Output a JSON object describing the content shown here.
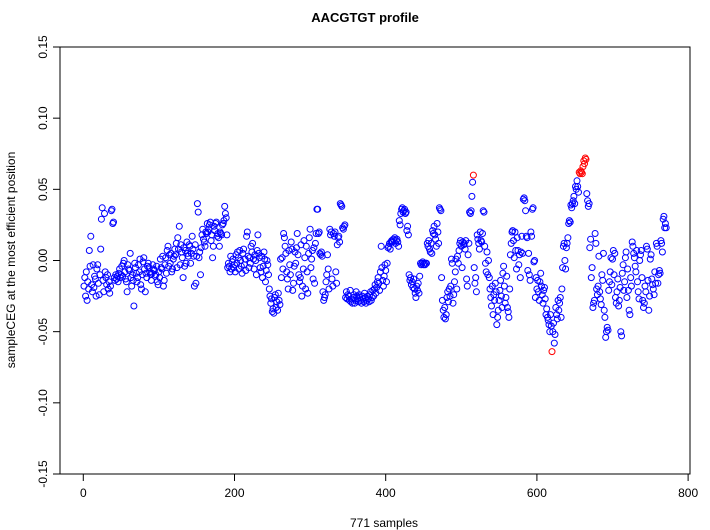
{
  "chart_data": {
    "type": "scatter",
    "title": "AACGTGT profile",
    "xlabel": "771 samples",
    "ylabel": "sampleCEG at the most efficient position",
    "xlim": [
      0,
      800
    ],
    "ylim": [
      -0.15,
      0.15
    ],
    "x_ticks": [
      "0",
      "200",
      "400",
      "600",
      "800"
    ],
    "y_ticks": [
      "-0.15",
      "-0.10",
      "-0.05",
      "0.00",
      "0.05",
      "0.10",
      "0.15"
    ],
    "grid": false,
    "legend": "none",
    "point_color": "#0000ff",
    "highlight_color": "#ff0000",
    "highlighted_samples": [
      516,
      620,
      656,
      657,
      658,
      659,
      660,
      661,
      662,
      663,
      664,
      665
    ],
    "x": "sample index 1..771",
    "values": [
      -0.018,
      -0.012,
      -0.025,
      -0.008,
      -0.028,
      -0.015,
      -0.02,
      0.007,
      -0.004,
      0.017,
      -0.017,
      -0.022,
      -0.003,
      -0.019,
      -0.011,
      -0.013,
      -0.025,
      -0.006,
      -0.003,
      -0.016,
      -0.024,
      -0.01,
      0.008,
      0.029,
      0.037,
      -0.014,
      -0.022,
      0.033,
      -0.008,
      -0.012,
      -0.017,
      -0.01,
      -0.02,
      -0.015,
      -0.023,
      -0.018,
      0.035,
      0.036,
      0.026,
      0.027,
      -0.012,
      -0.014,
      -0.01,
      -0.013,
      -0.011,
      -0.015,
      -0.009,
      -0.006,
      -0.012,
      -0.01,
      -0.004,
      -0.011,
      -0.002,
      0.0,
      -0.008,
      -0.013,
      -0.015,
      -0.022,
      -0.003,
      -0.006,
      -0.007,
      0.005,
      -0.012,
      -0.018,
      -0.01,
      -0.014,
      -0.032,
      -0.002,
      -0.005,
      -0.009,
      -0.015,
      -0.012,
      -0.003,
      -0.008,
      0.001,
      -0.017,
      -0.02,
      -0.01,
      -0.001,
      0.002,
      -0.006,
      -0.022,
      -0.009,
      -0.012,
      -0.004,
      -0.002,
      -0.005,
      -0.008,
      -0.01,
      -0.014,
      -0.009,
      -0.003,
      -0.006,
      -0.007,
      -0.011,
      -0.01,
      -0.004,
      -0.015,
      -0.017,
      -0.008,
      -0.012,
      0.001,
      -0.005,
      -0.006,
      0.003,
      -0.018,
      -0.014,
      -0.003,
      0.002,
      -0.009,
      0.007,
      0.01,
      -0.004,
      0.004,
      -0.002,
      0.005,
      -0.008,
      -0.006,
      0.001,
      0.003,
      0.008,
      0.004,
      0.012,
      -0.005,
      0.016,
      0.008,
      0.024,
      -0.003,
      0.011,
      0.006,
      0.002,
      -0.012,
      0.009,
      -0.004,
      0.007,
      -0.002,
      0.013,
      0.005,
      0.003,
      0.011,
      0.01,
      -0.002,
      0.005,
      0.017,
      0.008,
      0.003,
      -0.018,
      0.011,
      -0.016,
      0.003,
      0.04,
      0.034,
      0.002,
      0.006,
      -0.01,
      0.009,
      0.018,
      0.022,
      0.015,
      0.013,
      0.01,
      0.02,
      0.019,
      0.026,
      0.02,
      0.022,
      0.025,
      0.027,
      0.014,
      0.018,
      0.002,
      0.01,
      0.024,
      0.021,
      0.026,
      0.027,
      0.017,
      0.019,
      0.016,
      0.01,
      0.02,
      0.019,
      0.018,
      0.025,
      0.026,
      0.028,
      0.038,
      0.033,
      0.03,
      0.018,
      -0.005,
      -0.002,
      -0.004,
      -0.008,
      0.003,
      -0.006,
      -0.001,
      0.001,
      -0.005,
      -0.003,
      -0.008,
      0.004,
      -0.002,
      0.006,
      0.002,
      -0.006,
      0.007,
      0.0,
      -0.004,
      -0.009,
      0.005,
      0.008,
      -0.003,
      0.001,
      -0.007,
      0.017,
      0.02,
      0.003,
      -0.005,
      0.002,
      -0.002,
      0.01,
      0.006,
      0.012,
      0.001,
      -0.006,
      0.004,
      0.0,
      -0.01,
      0.007,
      0.018,
      0.005,
      0.002,
      -0.005,
      -0.008,
      0.003,
      -0.012,
      -0.004,
      0.006,
      0.001,
      -0.015,
      -0.007,
      0.0,
      -0.003,
      -0.01,
      -0.02,
      -0.025,
      -0.03,
      -0.027,
      -0.036,
      -0.034,
      -0.037,
      -0.026,
      -0.024,
      -0.033,
      -0.029,
      -0.035,
      -0.023,
      -0.028,
      -0.031,
      0.001,
      -0.012,
      0.002,
      -0.006,
      0.019,
      0.016,
      0.01,
      0.005,
      -0.008,
      -0.013,
      -0.02,
      0.007,
      -0.003,
      -0.01,
      0.013,
      0.008,
      -0.021,
      -0.016,
      -0.004,
      0.006,
      -0.002,
      0.009,
      0.019,
      0.004,
      -0.01,
      -0.015,
      -0.012,
      0.011,
      -0.025,
      -0.018,
      -0.006,
      0.014,
      0.002,
      -0.02,
      0.01,
      -0.008,
      -0.023,
      0.005,
      0.016,
      0.022,
      -0.005,
      0.001,
      0.007,
      -0.013,
      0.009,
      -0.016,
      0.012,
      0.019,
      0.036,
      0.036,
      0.019,
      0.02,
      0.005,
      0.004,
      0.006,
      0.003,
      -0.022,
      -0.028,
      -0.026,
      -0.024,
      -0.015,
      -0.01,
      0.004,
      -0.006,
      -0.02,
      0.022,
      0.018,
      0.02,
      -0.013,
      -0.018,
      0.019,
      0.017,
      0.02,
      -0.008,
      -0.016,
      0.011,
      0.016,
      0.017,
      0.013,
      0.04,
      0.039,
      0.038,
      0.023,
      0.022,
      0.024,
      0.025,
      -0.026,
      -0.022,
      -0.027,
      -0.024,
      -0.025,
      -0.028,
      -0.021,
      -0.029,
      -0.027,
      -0.03,
      -0.026,
      -0.024,
      -0.03,
      -0.028,
      -0.022,
      -0.025,
      -0.027,
      -0.029,
      -0.024,
      -0.026,
      -0.028,
      -0.03,
      -0.025,
      -0.027,
      -0.029,
      -0.023,
      -0.026,
      -0.03,
      -0.028,
      -0.025,
      -0.027,
      -0.029,
      -0.024,
      -0.022,
      -0.028,
      -0.026,
      -0.021,
      -0.025,
      -0.02,
      -0.017,
      -0.023,
      -0.019,
      -0.015,
      -0.012,
      -0.016,
      -0.021,
      -0.008,
      0.01,
      -0.005,
      -0.014,
      -0.018,
      -0.011,
      -0.003,
      -0.007,
      -0.015,
      -0.002,
      0.009,
      0.01,
      0.012,
      0.008,
      0.013,
      0.014,
      0.013,
      0.015,
      0.014,
      0.016,
      0.012,
      0.014,
      0.015,
      0.013,
      0.01,
      0.028,
      0.025,
      0.033,
      0.036,
      0.037,
      0.034,
      0.035,
      0.036,
      0.033,
      0.034,
      0.021,
      0.024,
      0.018,
      -0.01,
      -0.014,
      -0.012,
      -0.017,
      -0.015,
      -0.019,
      -0.013,
      -0.02,
      -0.023,
      -0.026,
      -0.018,
      -0.021,
      -0.016,
      -0.023,
      -0.011,
      -0.002,
      -0.003,
      -0.002,
      -0.001,
      -0.003,
      -0.002,
      -0.003,
      -0.002,
      -0.002,
      0.012,
      0.01,
      0.014,
      0.008,
      0.006,
      0.012,
      0.005,
      0.021,
      0.019,
      0.024,
      0.018,
      0.015,
      0.01,
      0.026,
      0.02,
      0.012,
      0.037,
      0.036,
      0.035,
      -0.012,
      -0.028,
      -0.035,
      -0.04,
      -0.033,
      -0.041,
      -0.038,
      -0.026,
      -0.022,
      -0.029,
      -0.02,
      -0.025,
      -0.018,
      0.001,
      -0.002,
      -0.03,
      -0.024,
      -0.015,
      -0.008,
      0.001,
      -0.02,
      0.003,
      -0.002,
      0.007,
      0.012,
      0.014,
      0.01,
      -0.005,
      0.013,
      0.011,
      0.012,
      0.008,
      0.014,
      -0.013,
      -0.018,
      0.004,
      0.012,
      0.034,
      0.033,
      0.035,
      0.045,
      0.055,
      0.06,
      -0.005,
      -0.016,
      -0.012,
      -0.022,
      0.018,
      0.015,
      0.012,
      0.008,
      0.02,
      0.014,
      0.013,
      0.019,
      0.035,
      0.034,
      0.01,
      -0.002,
      -0.008,
      0.006,
      -0.01,
      0.0,
      -0.012,
      -0.02,
      -0.026,
      -0.032,
      -0.018,
      -0.038,
      -0.024,
      -0.028,
      -0.016,
      -0.022,
      -0.045,
      -0.04,
      -0.035,
      -0.028,
      -0.021,
      -0.014,
      -0.025,
      -0.033,
      -0.009,
      -0.004,
      -0.018,
      -0.03,
      -0.026,
      -0.011,
      -0.033,
      -0.036,
      -0.04,
      -0.02,
      0.004,
      0.012,
      0.02,
      0.021,
      0.014,
      0.002,
      0.02,
      0.007,
      -0.006,
      0.016,
      0.007,
      -0.003,
      0.004,
      -0.012,
      0.006,
      0.017,
      0.005,
      0.043,
      0.044,
      0.042,
      0.035,
      0.017,
      0.016,
      -0.007,
      0.005,
      -0.01,
      -0.014,
      0.02,
      0.017,
      0.036,
      0.037,
      -0.001,
      0.0,
      -0.026,
      -0.012,
      -0.02,
      -0.014,
      -0.022,
      -0.028,
      -0.015,
      -0.009,
      -0.018,
      -0.024,
      -0.03,
      -0.021,
      -0.019,
      -0.027,
      -0.038,
      -0.034,
      -0.04,
      -0.042,
      -0.045,
      -0.05,
      -0.038,
      -0.046,
      -0.064,
      -0.05,
      -0.044,
      -0.058,
      -0.052,
      -0.033,
      -0.038,
      -0.041,
      -0.028,
      -0.035,
      -0.03,
      -0.026,
      -0.04,
      -0.02,
      -0.005,
      0.01,
      0.012,
      0.0,
      -0.006,
      0.009,
      0.012,
      0.016,
      0.026,
      0.028,
      0.027,
      0.039,
      0.037,
      0.04,
      0.042,
      0.045,
      0.04,
      0.052,
      0.05,
      0.056,
      0.052,
      0.048,
      0.062,
      0.061,
      0.063,
      0.062,
      0.061,
      0.066,
      0.07,
      0.068,
      0.072,
      0.071,
      0.047,
      0.042,
      0.038,
      0.04,
      0.009,
      0.015,
      -0.012,
      -0.005,
      -0.033,
      -0.03,
      -0.028,
      0.019,
      0.012,
      -0.02,
      -0.024,
      -0.018,
      0.003,
      -0.022,
      -0.027,
      -0.031,
      -0.01,
      -0.014,
      0.005,
      -0.035,
      -0.04,
      -0.054,
      -0.05,
      -0.047,
      -0.049,
      -0.021,
      -0.015,
      -0.008,
      0.002,
      -0.017,
      0.001,
      0.007,
      -0.01,
      0.005,
      -0.026,
      -0.03,
      -0.022,
      -0.013,
      -0.032,
      -0.028,
      -0.019,
      -0.05,
      -0.053,
      -0.009,
      -0.003,
      -0.021,
      -0.015,
      0.002,
      0.006,
      -0.026,
      -0.006,
      -0.021,
      -0.035,
      -0.038,
      -0.012,
      -0.018,
      0.013,
      0.01,
      0.005,
      0.002,
      -0.004,
      -0.008,
      0.007,
      -0.015,
      -0.022,
      -0.027,
      0.0,
      0.004,
      0.007,
      -0.012,
      -0.028,
      -0.033,
      -0.03,
      -0.018,
      -0.022,
      0.01,
      0.008,
      -0.014,
      -0.035,
      -0.025,
      0.001,
      0.004,
      -0.013,
      -0.017,
      -0.02,
      -0.024,
      -0.008,
      -0.016,
      0.012,
      0.01,
      -0.016,
      -0.01,
      -0.007,
      -0.009,
      0.014,
      0.012,
      0.006,
      0.029,
      0.031,
      0.023,
      0.026,
      0.023
    ]
  }
}
